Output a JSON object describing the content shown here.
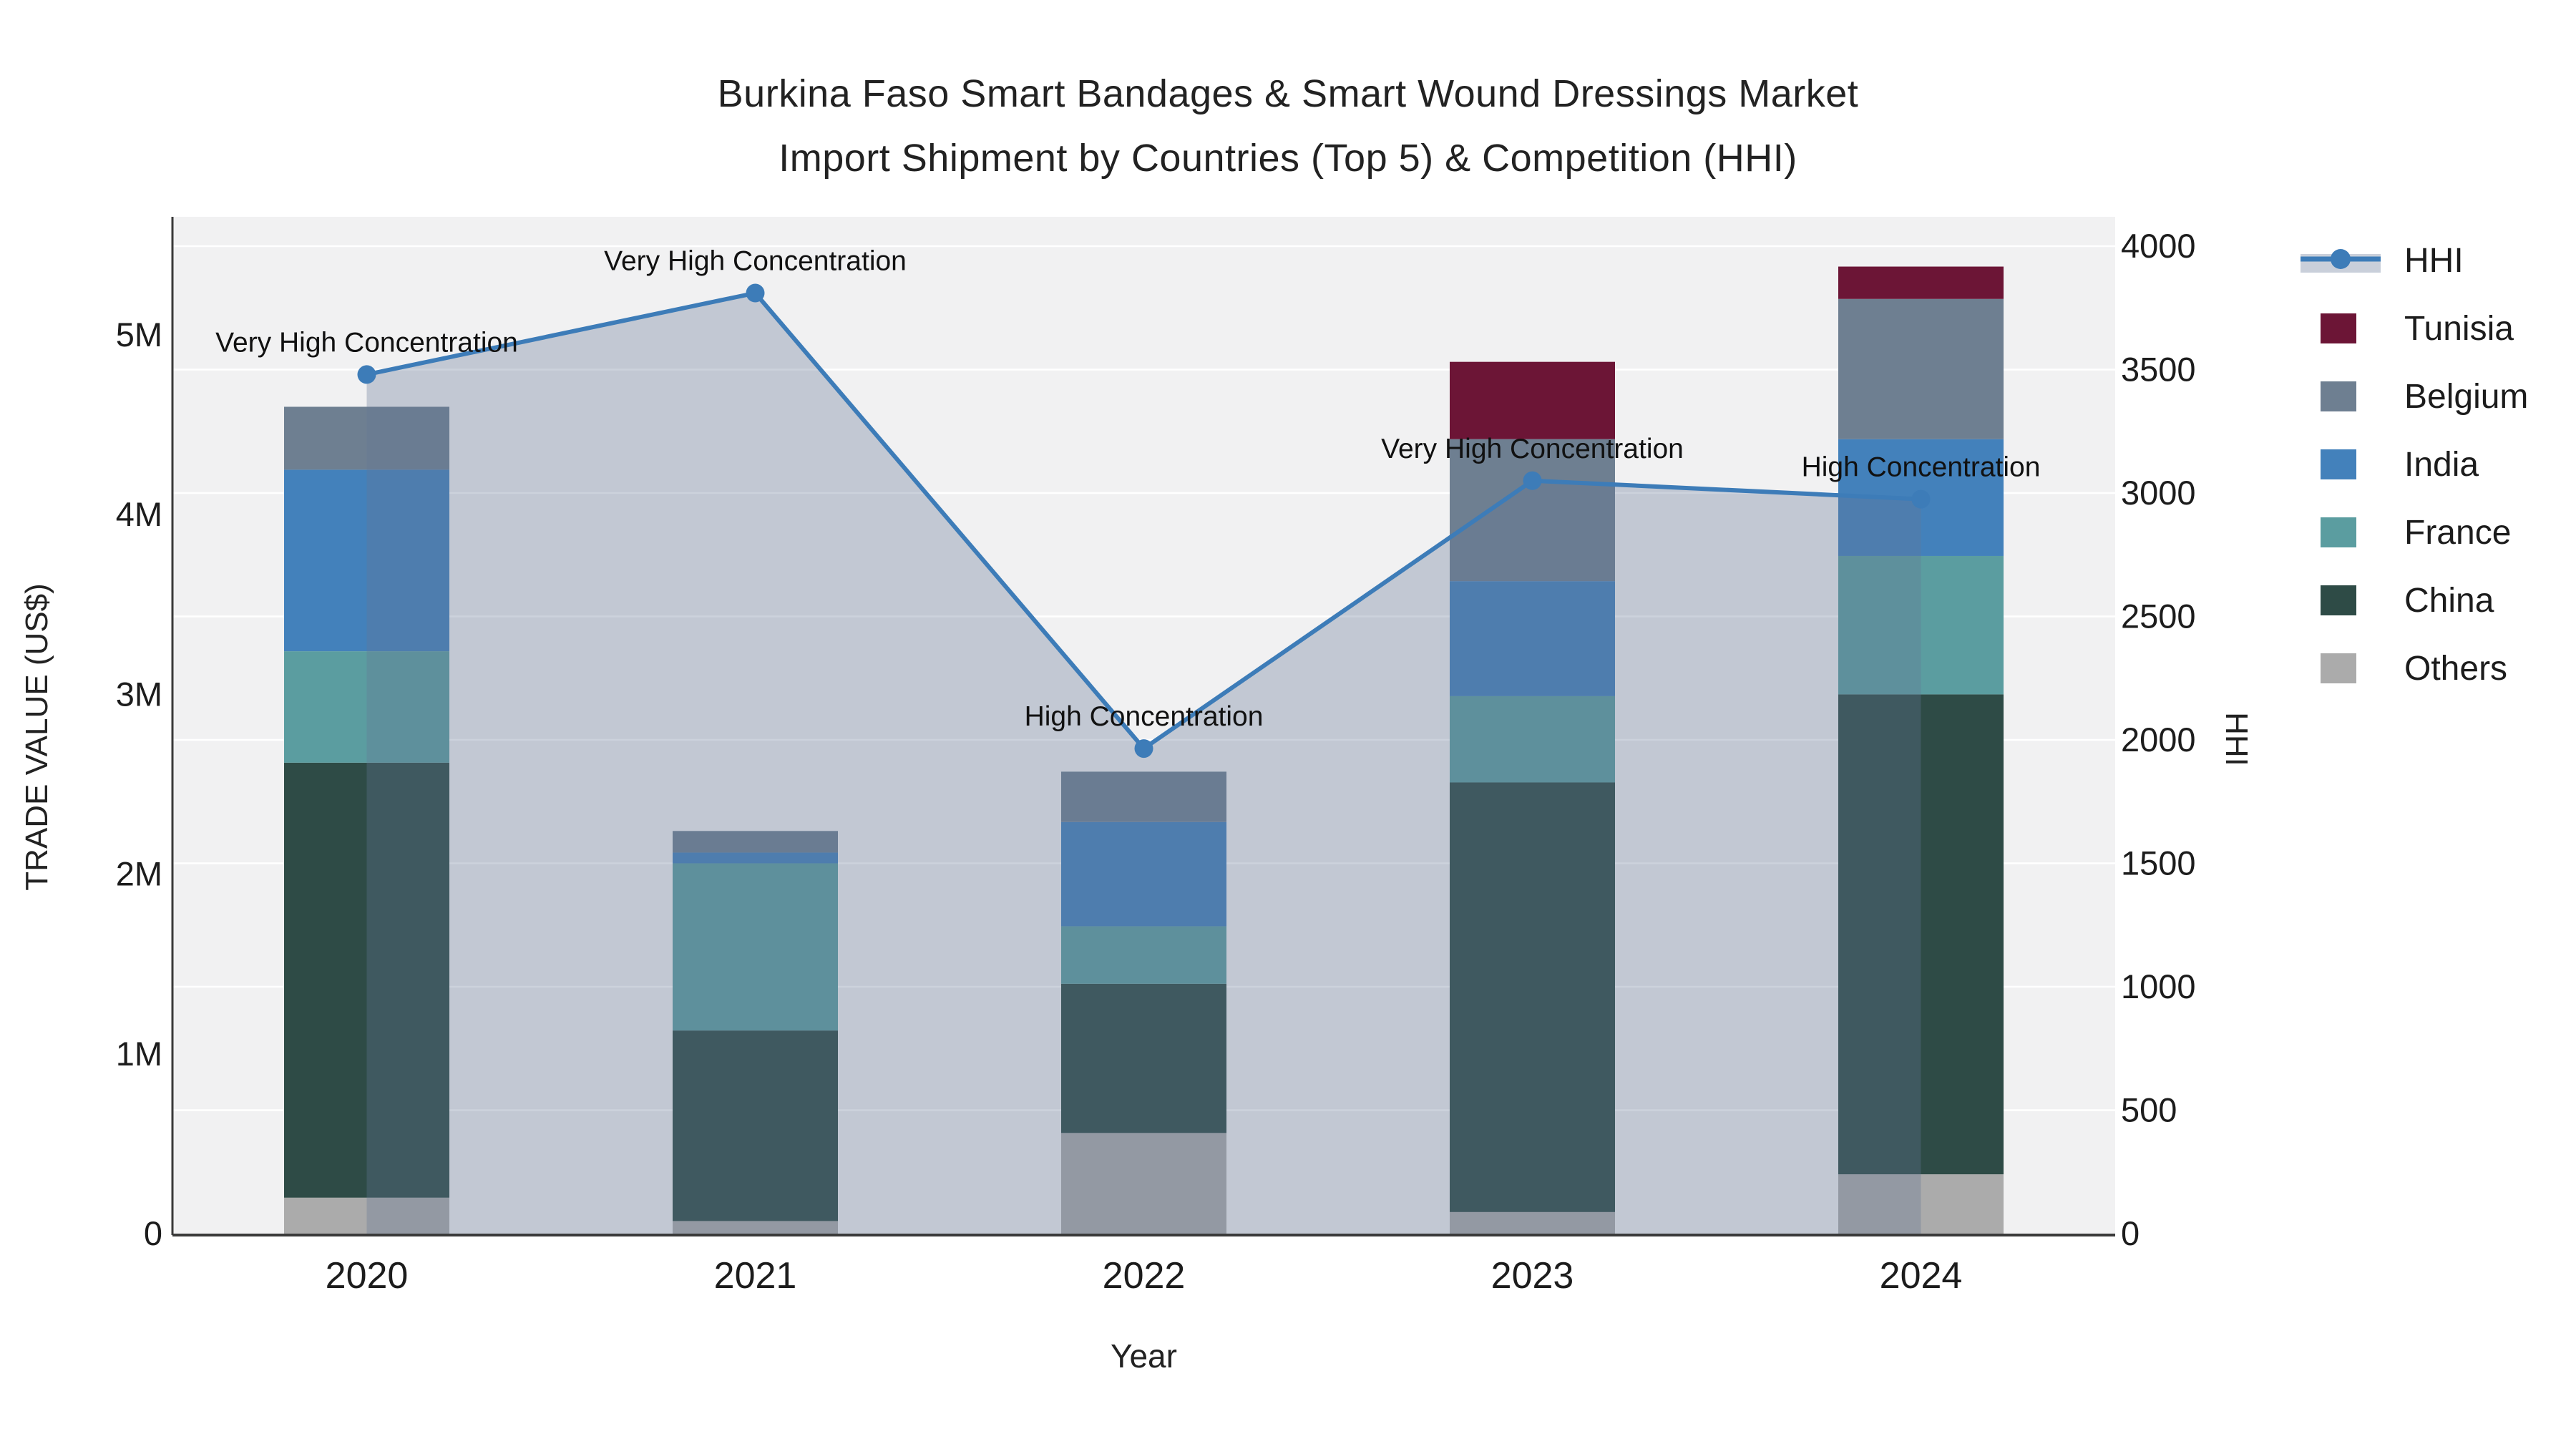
{
  "title": {
    "line1": "Burkina Faso Smart Bandages & Smart Wound Dressings Market",
    "line2": "Import Shipment by Countries (Top 5) & Competition (HHI)"
  },
  "axes": {
    "x_title": "Year",
    "y_left_title": "TRADE VALUE (US$)",
    "y_right_title": "HHI",
    "y_left_ticks": [
      "0",
      "1M",
      "2M",
      "3M",
      "4M",
      "5M"
    ],
    "y_left_tick_values": [
      0,
      1,
      2,
      3,
      4,
      5
    ],
    "y_right_ticks": [
      "0",
      "500",
      "1000",
      "1500",
      "2000",
      "2500",
      "3000",
      "3500",
      "4000"
    ],
    "y_right_tick_values": [
      0,
      500,
      1000,
      1500,
      2000,
      2500,
      3000,
      3500,
      4000
    ]
  },
  "legend": [
    {
      "label": "HHI",
      "type": "line",
      "color": "#3d7cb8"
    },
    {
      "label": "Tunisia",
      "type": "swatch",
      "color": "#6c1536"
    },
    {
      "label": "Belgium",
      "type": "swatch",
      "color": "#6e7f91"
    },
    {
      "label": "India",
      "type": "swatch",
      "color": "#4381bb"
    },
    {
      "label": "France",
      "type": "swatch",
      "color": "#5b9da0"
    },
    {
      "label": "China",
      "type": "swatch",
      "color": "#2e4b46"
    },
    {
      "label": "Others",
      "type": "swatch",
      "color": "#ababab"
    }
  ],
  "colors": {
    "plot_bg": "#f1f1f2",
    "grid": "#ffffff",
    "axis_line": "#3a3a3a",
    "hhi_line": "#3d7cb8",
    "hhi_fill": "rgba(100,118,150,0.33)",
    "legend_band": "#c9cfda"
  },
  "chart_data": {
    "type": "bar",
    "subtype": "stacked-bar-with-line",
    "categories": [
      "2020",
      "2021",
      "2022",
      "2023",
      "2024"
    ],
    "value_unit": "US$ millions (left axis)",
    "series": [
      {
        "name": "Others",
        "color": "#ababab",
        "values": [
          0.2,
          0.07,
          0.56,
          0.12,
          0.33
        ]
      },
      {
        "name": "China",
        "color": "#2e4b46",
        "values": [
          2.42,
          1.06,
          0.83,
          2.39,
          2.67
        ]
      },
      {
        "name": "France",
        "color": "#5b9da0",
        "values": [
          0.62,
          0.93,
          0.32,
          0.48,
          0.77
        ]
      },
      {
        "name": "India",
        "color": "#4381bb",
        "values": [
          1.01,
          0.06,
          0.58,
          0.64,
          0.65
        ]
      },
      {
        "name": "Belgium",
        "color": "#6e7f91",
        "values": [
          0.35,
          0.12,
          0.28,
          0.79,
          0.78
        ]
      },
      {
        "name": "Tunisia",
        "color": "#6c1536",
        "values": [
          0.0,
          0.0,
          0.0,
          0.43,
          0.18
        ]
      }
    ],
    "bar_totals": [
      4.6,
      2.24,
      2.57,
      4.85,
      5.38
    ],
    "line": {
      "name": "HHI",
      "color": "#3d7cb8",
      "values": [
        3480,
        3810,
        1965,
        3050,
        2975
      ],
      "area_fill": true
    },
    "annotations": [
      "Very High Concentration",
      "Very High Concentration",
      "High Concentration",
      "Very High Concentration",
      "High Concentration"
    ],
    "ylim_left_millions": [
      0,
      5.7
    ],
    "ylim_right": [
      0,
      4000
    ],
    "grid": true,
    "legend_position": "right"
  }
}
